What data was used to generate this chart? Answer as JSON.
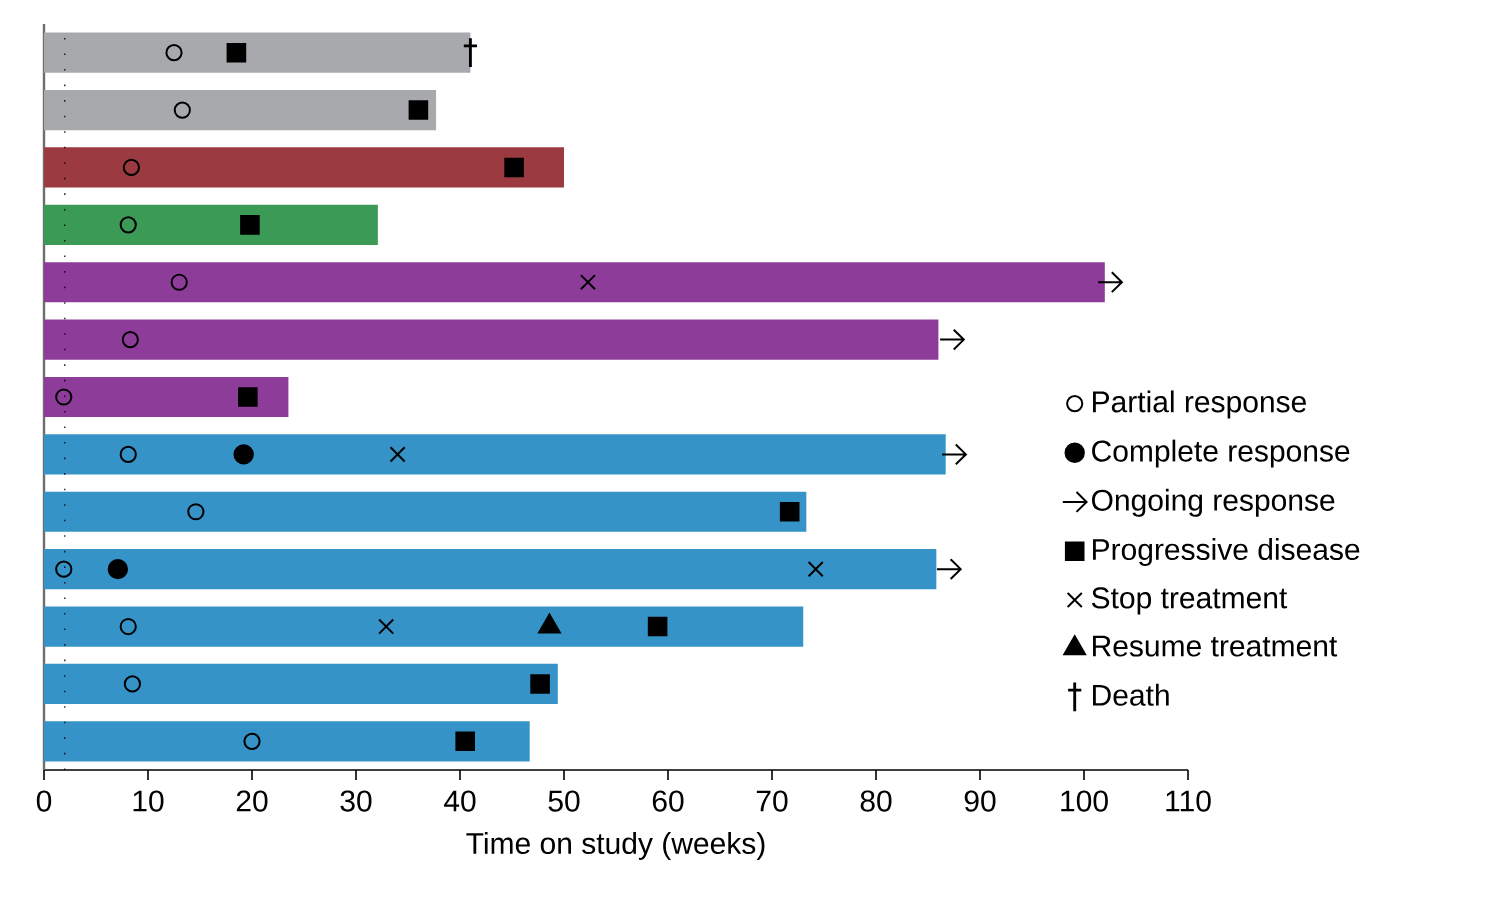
{
  "chart_data": {
    "type": "bar",
    "orientation": "horizontal",
    "xlabel": "Time on study (weeks)",
    "categories": [
      null,
      null,
      null,
      null,
      null,
      null,
      null,
      null,
      null,
      null,
      null,
      null,
      null
    ],
    "xlim": [
      0,
      110
    ],
    "xticks": [
      0,
      10,
      20,
      30,
      40,
      50,
      60,
      70,
      80,
      90,
      100,
      110
    ],
    "legend": "right",
    "ref_lines": [
      {
        "axis": "x",
        "value": 2,
        "line_style": "dotted",
        "color": "#000000"
      }
    ],
    "series": [
      {
        "values": [
          41,
          37.7,
          50,
          32.1,
          102,
          86,
          23.5,
          86.7,
          73.3,
          85.8,
          73,
          49.4,
          46.7
        ],
        "colors": [
          "#a7a9ac",
          "#a7a9ac",
          "#9b3a40",
          "#3a9a56",
          "#8e3c9a",
          "#8e3c9a",
          "#8e3c9a",
          "#3593c8",
          "#3593c8",
          "#3593c8",
          "#3593c8",
          "#3593c8",
          "#3593c8"
        ]
      },
      {
        "type": "scatter",
        "name": "Partial response",
        "marker": "open circle",
        "color": "#000000",
        "values": [
          12.5,
          13.3,
          8.4,
          8.1,
          13,
          8.3,
          1.9,
          8.1,
          14.6,
          1.9,
          8.1,
          8.5,
          20
        ]
      },
      {
        "type": "scatter",
        "name": "Complete response",
        "marker": "circle",
        "color": "#000000",
        "values": [
          null,
          null,
          null,
          null,
          null,
          null,
          null,
          19.2,
          null,
          7.1,
          null,
          null,
          null
        ]
      },
      {
        "type": "scatter",
        "name": "Ongoing response",
        "color": "#000000",
        "values": [
          null,
          null,
          null,
          null,
          102.5,
          87.3,
          null,
          87.5,
          null,
          87,
          null,
          null,
          null
        ]
      },
      {
        "type": "scatter",
        "name": "Progressive disease",
        "marker": "square",
        "color": "#000000",
        "values": [
          18.5,
          36,
          45.2,
          19.8,
          null,
          null,
          19.6,
          null,
          71.7,
          null,
          59,
          47.7,
          40.5
        ]
      },
      {
        "type": "scatter",
        "name": "Stop treatment",
        "marker": "cross",
        "color": "#000000",
        "values": [
          null,
          null,
          null,
          null,
          52.3,
          null,
          null,
          34,
          null,
          74.2,
          32.9,
          null,
          null
        ]
      },
      {
        "type": "scatter",
        "name": "Resume treatment",
        "marker": "triangle",
        "color": "#000000",
        "values": [
          null,
          null,
          null,
          null,
          null,
          null,
          null,
          null,
          null,
          null,
          48.6,
          null,
          null
        ]
      },
      {
        "type": "scatter",
        "name": "Death",
        "color": "#000000",
        "values": [
          41,
          null,
          null,
          null,
          null,
          null,
          null,
          null,
          null,
          null,
          null,
          null,
          null
        ]
      }
    ]
  }
}
